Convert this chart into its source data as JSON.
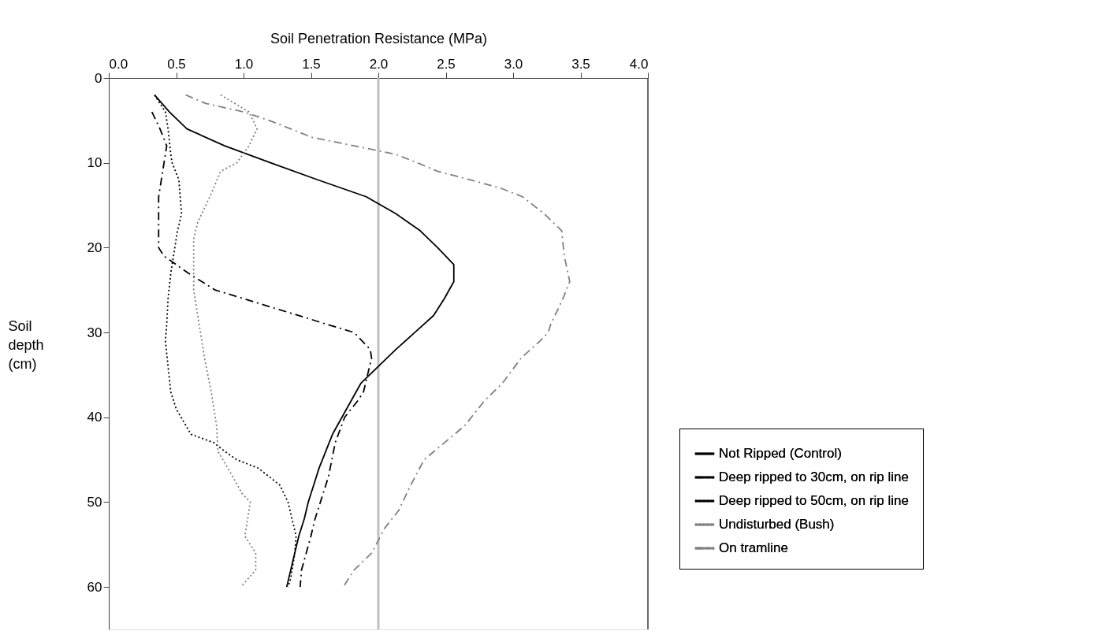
{
  "chart_data": {
    "type": "line",
    "xlabel": "Soil Penetration Resistance (MPa)",
    "ylabel": "Soil depth (cm)",
    "xlim": [
      0,
      4
    ],
    "xticks": [
      {
        "value": 0,
        "label": "0.0"
      },
      {
        "value": 0.5,
        "label": "0.5"
      },
      {
        "value": 1,
        "label": "1.0"
      },
      {
        "value": 1.5,
        "label": "1.5"
      },
      {
        "value": 2,
        "label": "2.0"
      },
      {
        "value": 2.5,
        "label": "2.5"
      },
      {
        "value": 3,
        "label": "3.0"
      },
      {
        "value": 3.5,
        "label": "3.5"
      },
      {
        "value": 4,
        "label": "4.0"
      }
    ],
    "ylim": [
      65,
      0
    ],
    "yticks": [
      0,
      10,
      20,
      30,
      40,
      50,
      60
    ],
    "grid": false,
    "legend": "bottom right",
    "ref_lines": [
      {
        "axis": "x",
        "value": 2,
        "color": "#c0c0c0"
      }
    ],
    "series": [
      {
        "name": "Not Ripped (Control)",
        "color": "#000000",
        "line_style": "solid",
        "x": [
          0.34,
          0.45,
          0.58,
          0.86,
          1.2,
          1.55,
          1.91,
          2.13,
          2.31,
          2.44,
          2.56,
          2.56,
          2.49,
          2.41,
          2.27,
          2.13,
          2.0,
          1.87,
          1.8,
          1.73,
          1.66,
          1.61,
          1.56,
          1.52,
          1.48,
          1.45,
          1.41,
          1.38,
          1.35,
          1.32
        ],
        "values": [
          2,
          4,
          6,
          8,
          10,
          12,
          14,
          16,
          18,
          20,
          22,
          24,
          26,
          28,
          30,
          32,
          34,
          36,
          38,
          40,
          42,
          44,
          46,
          48,
          50,
          52,
          54,
          56,
          58,
          60
        ]
      },
      {
        "name": "Deep ripped to 30cm, on rip line",
        "color": "#000000",
        "line_style": "dashed",
        "x": [
          0.32,
          0.38,
          0.43,
          0.4,
          0.37,
          0.37,
          0.37,
          0.41,
          0.59,
          0.79,
          1.0,
          1.2,
          1.41,
          1.61,
          1.82,
          1.94,
          1.95,
          1.89,
          1.85,
          1.75,
          1.68,
          1.63,
          1.57,
          1.53,
          1.5,
          1.43,
          1.42
        ],
        "values": [
          4,
          6,
          8,
          11,
          14,
          18,
          20,
          21,
          23,
          25,
          26,
          27,
          28,
          29,
          30,
          32,
          33,
          37,
          38,
          40,
          43,
          47,
          50,
          52,
          54,
          58,
          60
        ]
      },
      {
        "name": "Deep ripped to 50cm, on rip line",
        "color": "#000000",
        "line_style": "dotted",
        "x": [
          0.34,
          0.42,
          0.44,
          0.46,
          0.47,
          0.52,
          0.54,
          0.51,
          0.49,
          0.46,
          0.44,
          0.43,
          0.42,
          0.44,
          0.46,
          0.5,
          0.61,
          0.78,
          0.86,
          0.95,
          1.11,
          1.27,
          1.33,
          1.36,
          1.39,
          1.38,
          1.35,
          1.33
        ],
        "values": [
          2,
          4,
          6,
          9,
          10,
          12,
          16,
          18,
          20,
          23,
          26,
          29,
          31,
          34,
          37,
          39,
          42,
          43,
          44,
          45,
          46,
          48,
          50,
          52,
          54,
          56,
          59,
          60
        ]
      },
      {
        "name": "Undisturbed (Bush)",
        "color": "#808080",
        "line_style": "dotted",
        "x": [
          0.83,
          1.04,
          1.1,
          1.04,
          0.95,
          0.83,
          0.75,
          0.66,
          0.63,
          0.63,
          0.63,
          0.67,
          0.71,
          0.76,
          0.8,
          0.81,
          0.92,
          0.99,
          1.05,
          1.01,
          1.09,
          1.09,
          0.98
        ],
        "values": [
          2,
          4,
          6,
          8,
          10,
          11,
          14,
          17,
          19,
          21,
          25,
          29,
          33,
          37,
          41,
          44,
          47,
          49,
          50,
          54,
          56,
          58,
          60
        ]
      },
      {
        "name": "On tramline",
        "color": "#808080",
        "line_style": "dashed",
        "x": [
          0.57,
          0.72,
          1.0,
          1.19,
          1.35,
          1.51,
          1.82,
          2.13,
          2.29,
          2.44,
          2.68,
          2.91,
          3.07,
          3.23,
          3.36,
          3.38,
          3.42,
          3.37,
          3.28,
          3.26,
          3.2,
          3.06,
          2.92,
          2.79,
          2.64,
          2.49,
          2.34,
          2.24,
          2.15,
          2.05,
          1.95,
          1.82,
          1.74
        ],
        "values": [
          2,
          3,
          4,
          5,
          6,
          7,
          8,
          9,
          10,
          11,
          12,
          13,
          14,
          16,
          18,
          21,
          24,
          26,
          29,
          30,
          31,
          33,
          36,
          38,
          41,
          43,
          45,
          48,
          51,
          53,
          56,
          58,
          60
        ]
      }
    ]
  }
}
